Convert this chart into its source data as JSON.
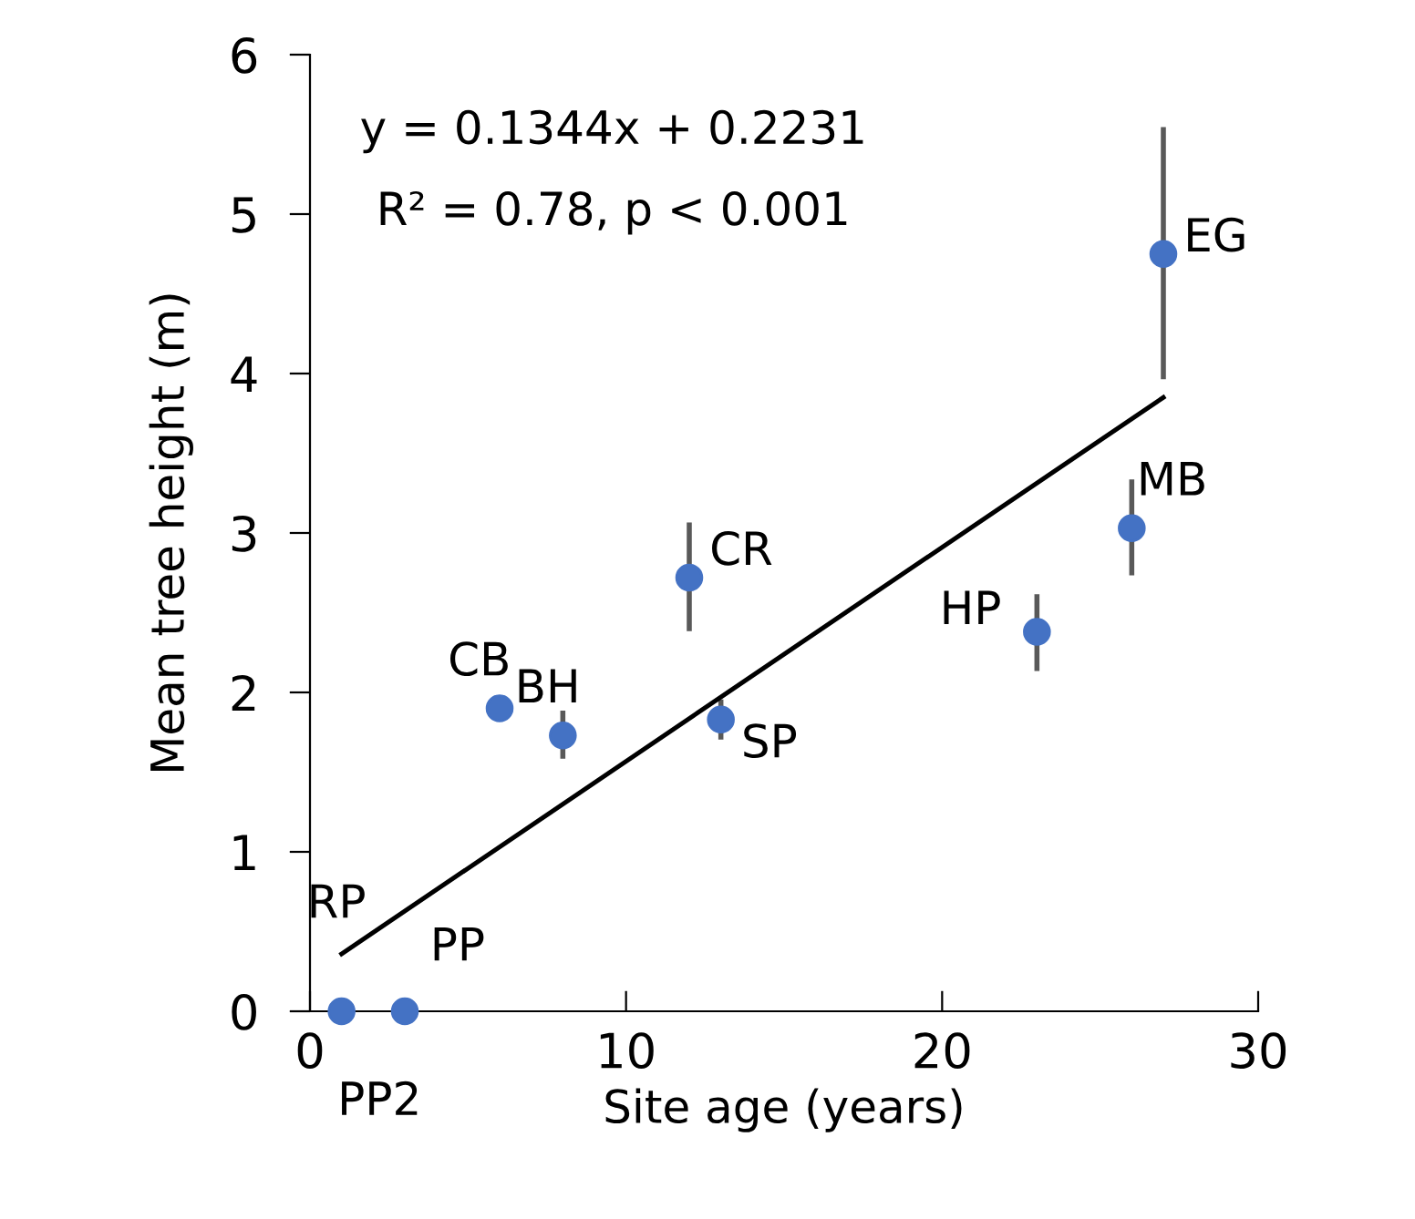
{
  "chart_data": {
    "type": "scatter",
    "xlabel": "Site age (years)",
    "ylabel": "Mean tree height (m)",
    "xlim": [
      0,
      30
    ],
    "xticks": [
      0,
      10,
      20,
      30
    ],
    "ylim": [
      0,
      6
    ],
    "yticks": [
      0,
      1,
      2,
      3,
      4,
      5,
      6
    ],
    "grid": false,
    "legend": false,
    "series": [
      {
        "marker": "circle",
        "color": "#4472c4",
        "x": [
          1,
          3,
          6,
          8,
          12,
          13,
          23,
          26,
          27
        ],
        "values": [
          0,
          0,
          1.9,
          1.73,
          2.72,
          1.83,
          2.38,
          3.03,
          4.75
        ],
        "errors": [
          null,
          null,
          null,
          [
            1.6,
            1.87
          ],
          [
            2.4,
            3.05
          ],
          [
            1.72,
            1.94
          ],
          [
            2.15,
            2.6
          ],
          [
            2.75,
            3.32
          ],
          [
            3.98,
            5.53
          ]
        ]
      },
      {
        "type": "line",
        "color": "#000000",
        "x": [
          1,
          27
        ],
        "values": [
          0.36,
          3.85
        ]
      }
    ],
    "annotations": [
      "y = 0.1344x + 0.2231",
      "R² = 0.78, p < 0.001",
      {
        "text": "RP",
        "x": 1,
        "y": 0
      },
      {
        "text": "PP",
        "x": 3,
        "y": 0
      },
      {
        "text": "PP2",
        "x": 3,
        "y": 0
      },
      {
        "text": "CB",
        "x": 6,
        "y": 1.9
      },
      {
        "text": "BH",
        "x": 8,
        "y": 1.73
      },
      {
        "text": "CR",
        "x": 12,
        "y": 2.72
      },
      {
        "text": "SP",
        "x": 13,
        "y": 1.83
      },
      {
        "text": "HP",
        "x": 23,
        "y": 2.38
      },
      {
        "text": "MB",
        "x": 26,
        "y": 3.03
      },
      {
        "text": "EG",
        "x": 27,
        "y": 4.75
      }
    ]
  }
}
